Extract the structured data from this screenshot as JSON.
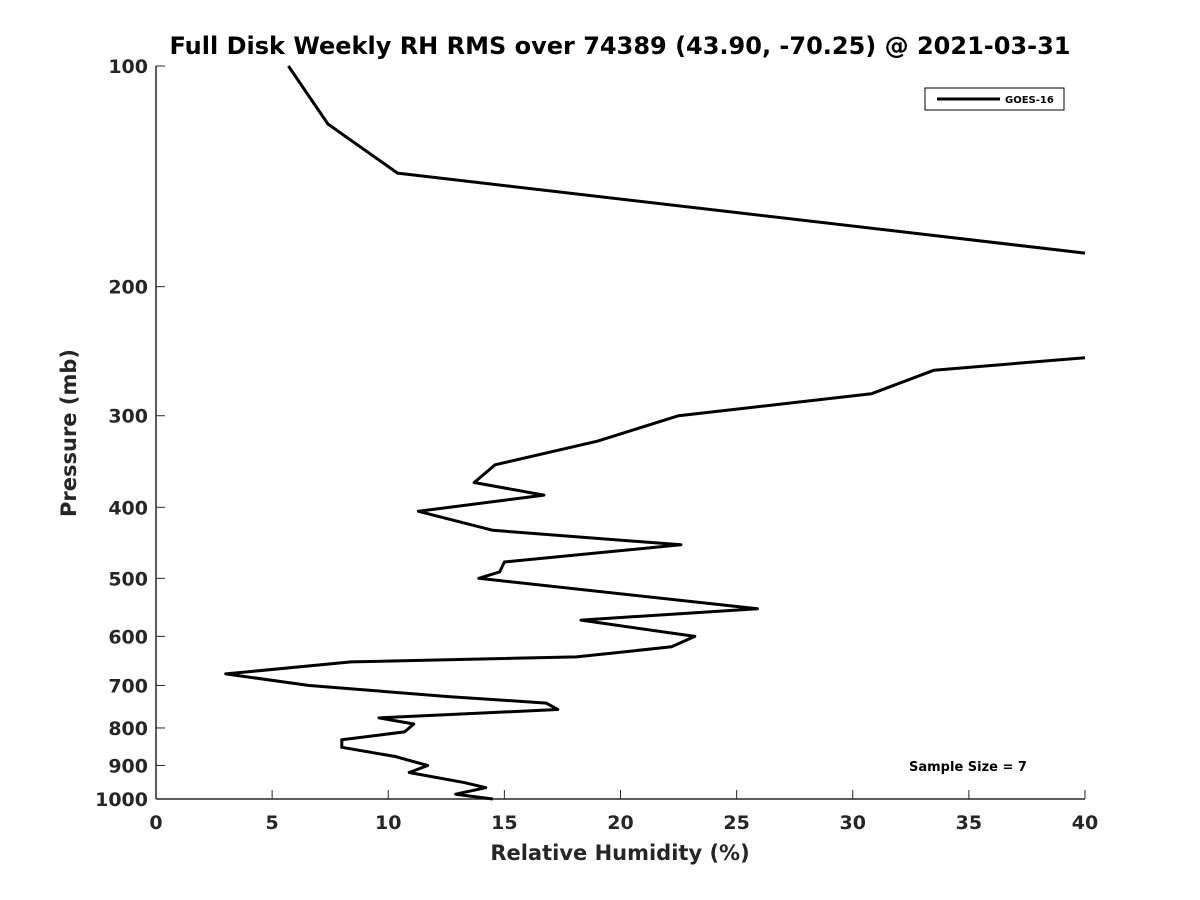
{
  "chart_data": {
    "type": "line",
    "title": "Full Disk Weekly RH RMS over 74389 (43.90, -70.25) @ 2021-03-31",
    "xlabel": "Relative Humidity (%)",
    "ylabel": "Pressure (mb)",
    "xlim": [
      0,
      40
    ],
    "ylim": [
      100,
      1000
    ],
    "yscale": "log",
    "y_reversed": true,
    "xticks": [
      "0",
      "5",
      "10",
      "15",
      "20",
      "25",
      "30",
      "35",
      "40"
    ],
    "yticks": [
      "100",
      "200",
      "300",
      "400",
      "500",
      "600",
      "700",
      "800",
      "900",
      "1000"
    ],
    "grid": false,
    "legend_position": "top-right",
    "annotation": "Sample Size = 7",
    "series": [
      {
        "name": "GOES-16",
        "color": "#000000",
        "segments": [
          [
            {
              "x": 5.7,
              "y": 100
            },
            {
              "x": 7.4,
              "y": 120
            },
            {
              "x": 10.4,
              "y": 140
            },
            {
              "x": 40.0,
              "y": 180
            }
          ],
          [
            {
              "x": 40.0,
              "y": 250
            },
            {
              "x": 33.5,
              "y": 260
            },
            {
              "x": 30.8,
              "y": 280
            },
            {
              "x": 22.5,
              "y": 300
            },
            {
              "x": 19.0,
              "y": 325
            },
            {
              "x": 14.6,
              "y": 350
            },
            {
              "x": 13.7,
              "y": 370
            },
            {
              "x": 16.7,
              "y": 385
            },
            {
              "x": 11.3,
              "y": 405
            },
            {
              "x": 14.5,
              "y": 430
            },
            {
              "x": 22.6,
              "y": 450
            },
            {
              "x": 15.0,
              "y": 475
            },
            {
              "x": 14.8,
              "y": 490
            },
            {
              "x": 13.9,
              "y": 500
            },
            {
              "x": 25.9,
              "y": 550
            },
            {
              "x": 18.3,
              "y": 570
            },
            {
              "x": 23.2,
              "y": 600
            },
            {
              "x": 22.2,
              "y": 620
            },
            {
              "x": 18.1,
              "y": 640
            },
            {
              "x": 8.4,
              "y": 650
            },
            {
              "x": 3.0,
              "y": 675
            },
            {
              "x": 6.6,
              "y": 700
            },
            {
              "x": 12.6,
              "y": 725
            },
            {
              "x": 16.8,
              "y": 740
            },
            {
              "x": 17.3,
              "y": 755
            },
            {
              "x": 9.6,
              "y": 775
            },
            {
              "x": 11.1,
              "y": 790
            },
            {
              "x": 10.7,
              "y": 810
            },
            {
              "x": 8.0,
              "y": 830
            },
            {
              "x": 8.0,
              "y": 850
            },
            {
              "x": 10.3,
              "y": 875
            },
            {
              "x": 11.7,
              "y": 900
            },
            {
              "x": 10.9,
              "y": 920
            },
            {
              "x": 13.3,
              "y": 950
            },
            {
              "x": 14.2,
              "y": 965
            },
            {
              "x": 12.9,
              "y": 985
            },
            {
              "x": 14.5,
              "y": 1000
            }
          ]
        ]
      }
    ]
  }
}
